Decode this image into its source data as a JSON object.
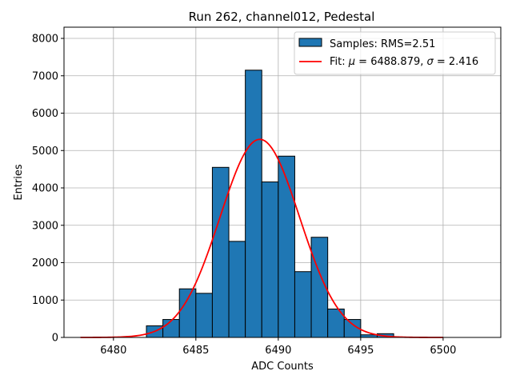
{
  "chart_data": {
    "type": "bar",
    "title": "Run 262, channel012, Pedestal",
    "xlabel": "ADC Counts",
    "ylabel": "Entries",
    "xlim": [
      6477,
      6503.5
    ],
    "ylim": [
      0,
      8300
    ],
    "grid": true,
    "legend_placement": "top-right",
    "x_ticks": [
      6480,
      6485,
      6490,
      6495,
      6500
    ],
    "y_ticks": [
      0,
      1000,
      2000,
      3000,
      4000,
      5000,
      6000,
      7000,
      8000
    ],
    "bin_width": 1,
    "histogram": {
      "name": "Samples: RMS=2.51",
      "color": "#1f77b4",
      "edge_color": "#000000",
      "bins": [
        {
          "x0": 6482,
          "value": 310
        },
        {
          "x0": 6483,
          "value": 480
        },
        {
          "x0": 6484,
          "value": 1300
        },
        {
          "x0": 6485,
          "value": 1180
        },
        {
          "x0": 6486,
          "value": 4550
        },
        {
          "x0": 6487,
          "value": 2570
        },
        {
          "x0": 6488,
          "value": 7150
        },
        {
          "x0": 6489,
          "value": 4160
        },
        {
          "x0": 6490,
          "value": 4850
        },
        {
          "x0": 6491,
          "value": 1760
        },
        {
          "x0": 6492,
          "value": 2680
        },
        {
          "x0": 6493,
          "value": 760
        },
        {
          "x0": 6494,
          "value": 480
        },
        {
          "x0": 6495,
          "value": 70
        },
        {
          "x0": 6496,
          "value": 100
        }
      ]
    },
    "fit": {
      "name_prefix": "Fit: ",
      "mu_symbol": "μ",
      "mu_text": " = 6488.879, ",
      "sigma_symbol": "σ",
      "sigma_text": " = 2.416",
      "color": "#ff0000",
      "mu": 6488.879,
      "sigma": 2.416,
      "amplitude": 5300,
      "x_range": [
        6478,
        6500
      ]
    }
  }
}
